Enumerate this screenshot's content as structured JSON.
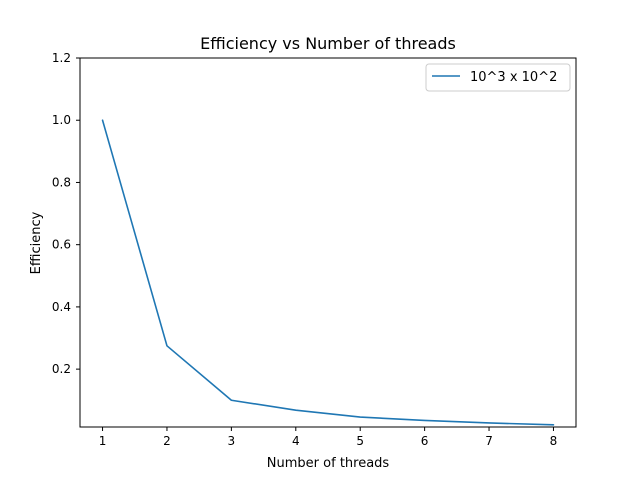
{
  "chart_data": {
    "type": "line",
    "title": "Efficiency vs Number of threads",
    "xlabel": "Number of threads",
    "ylabel": "Efficiency",
    "x": [
      1,
      2,
      3,
      4,
      5,
      6,
      7,
      8
    ],
    "series": [
      {
        "name": "10^3 x 10^2",
        "color": "#1f77b4",
        "values": [
          1.0,
          0.275,
          0.1,
          0.068,
          0.046,
          0.035,
          0.027,
          0.021
        ]
      }
    ],
    "xlim": [
      0.65,
      8.35
    ],
    "ylim": [
      0.014,
      1.2
    ],
    "xticks": [
      "1",
      "2",
      "3",
      "4",
      "5",
      "6",
      "7",
      "8"
    ],
    "yticks": [
      "0.2",
      "0.4",
      "0.6",
      "0.8",
      "1.0",
      "1.2"
    ],
    "grid": false,
    "legend_position": "upper right"
  }
}
